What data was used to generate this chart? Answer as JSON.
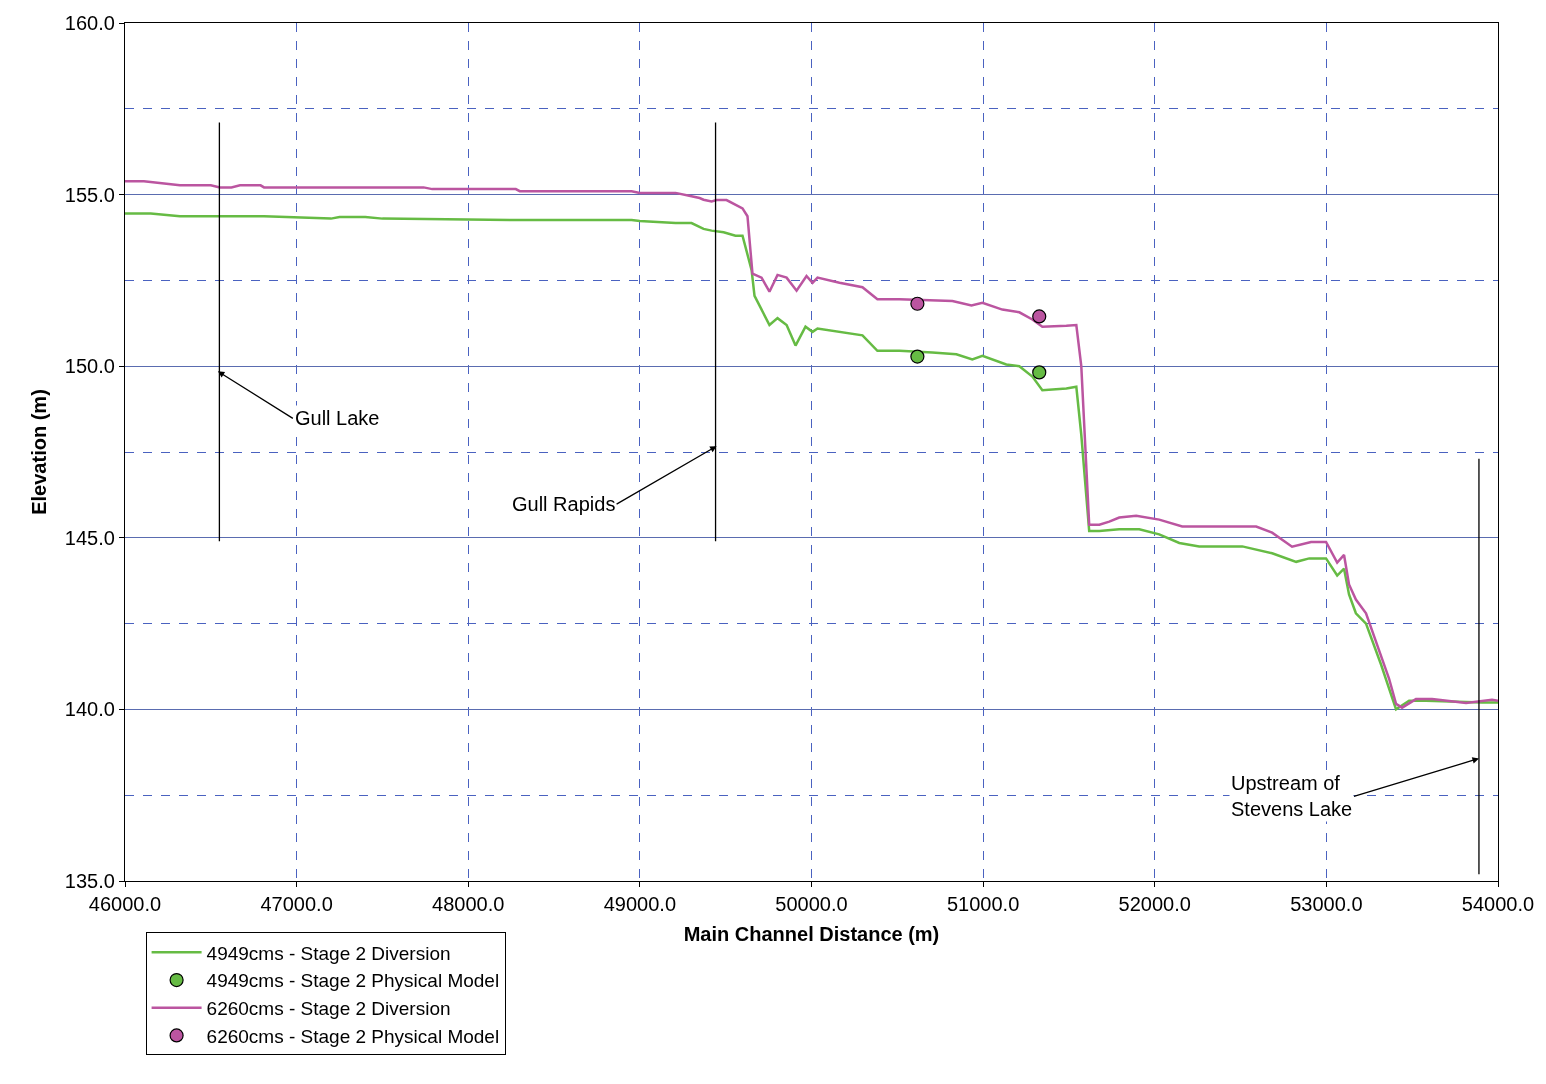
{
  "chart_data": {
    "type": "line",
    "xlabel": "Main Channel Distance (m)",
    "ylabel": "Elevation (m)",
    "xlim": [
      46000,
      54000
    ],
    "ylim": [
      135,
      160
    ],
    "xticks": [
      {
        "value": 46000,
        "label": "46000.0"
      },
      {
        "value": 47000,
        "label": "47000.0"
      },
      {
        "value": 48000,
        "label": "48000.0"
      },
      {
        "value": 49000,
        "label": "49000.0"
      },
      {
        "value": 50000,
        "label": "50000.0"
      },
      {
        "value": 51000,
        "label": "51000.0"
      },
      {
        "value": 52000,
        "label": "52000.0"
      },
      {
        "value": 53000,
        "label": "53000.0"
      },
      {
        "value": 54000,
        "label": "54000.0"
      }
    ],
    "yticks": [
      {
        "value": 135,
        "label": "135.0"
      },
      {
        "value": 140,
        "label": "140.0"
      },
      {
        "value": 145,
        "label": "145.0"
      },
      {
        "value": 150,
        "label": "150.0"
      },
      {
        "value": 155,
        "label": "155.0"
      },
      {
        "value": 160,
        "label": "160.0"
      }
    ],
    "grid": true,
    "legend": "bottom left",
    "line_style": "solid",
    "series": [
      {
        "name": "4949cms - Stage 2 Diversion",
        "marker": "none",
        "color": "#66bb44",
        "x": [
          46000,
          46150,
          46320,
          46550,
          46790,
          46810,
          47200,
          47250,
          47400,
          47500,
          48277,
          48300,
          48952,
          48999,
          49208,
          49301,
          49371,
          49418,
          49488,
          49557,
          49598,
          49651,
          49668,
          49755,
          49802,
          49855,
          49907,
          49965,
          50006,
          50035,
          50297,
          50384,
          50512,
          50704,
          50844,
          50937,
          50996,
          51135,
          51211,
          51287,
          51345,
          51485,
          51543,
          51572,
          51618,
          51677,
          51793,
          51910,
          52026,
          52143,
          52259,
          52510,
          52684,
          52824,
          52900,
          52998,
          53063,
          53103,
          53132,
          53172,
          53231,
          53319,
          53406,
          53482,
          53581,
          53907,
          54000
        ],
        "values": [
          154.45,
          154.45,
          154.37,
          154.37,
          154.37,
          154.37,
          154.3,
          154.35,
          154.35,
          154.3,
          154.26,
          154.26,
          154.26,
          154.23,
          154.17,
          154.17,
          154.0,
          153.95,
          153.9,
          153.8,
          153.8,
          152.8,
          152.05,
          151.2,
          151.4,
          151.2,
          150.6,
          151.15,
          151.0,
          151.1,
          150.9,
          150.45,
          150.45,
          150.4,
          150.35,
          150.2,
          150.3,
          150.05,
          150.0,
          149.7,
          149.3,
          149.35,
          149.4,
          148.0,
          145.2,
          145.2,
          145.25,
          145.25,
          145.1,
          144.85,
          144.75,
          144.75,
          144.55,
          144.3,
          144.4,
          144.4,
          143.9,
          144.1,
          143.35,
          142.8,
          142.5,
          141.3,
          140.0,
          140.25,
          140.25,
          140.2,
          140.2
        ]
      },
      {
        "name": "4949cms - Stage 2 Physical Model",
        "type": "scatter",
        "marker": "circle",
        "color": "#66bb44",
        "x": [
          50617,
          51327
        ],
        "values": [
          150.28,
          149.82
        ]
      },
      {
        "name": "6260cms - Stage 2 Diversion",
        "marker": "none",
        "color": "#bb55a0",
        "x": [
          46000,
          46110,
          46320,
          46500,
          46553,
          46620,
          46670,
          46790,
          46810,
          47740,
          47790,
          48277,
          48300,
          48952,
          48999,
          49208,
          49301,
          49348,
          49371,
          49418,
          49447,
          49505,
          49598,
          49627,
          49656,
          49709,
          49755,
          49802,
          49855,
          49913,
          49971,
          50006,
          50035,
          50163,
          50297,
          50384,
          50512,
          50821,
          50932,
          50996,
          51112,
          51211,
          51287,
          51345,
          51485,
          51543,
          51572,
          51618,
          51677,
          51735,
          51793,
          51892,
          52026,
          52160,
          52591,
          52684,
          52800,
          52911,
          52998,
          53063,
          53103,
          53132,
          53172,
          53231,
          53365,
          53406,
          53441,
          53522,
          53616,
          53814,
          53965,
          54000
        ],
        "values": [
          155.39,
          155.39,
          155.27,
          155.27,
          155.21,
          155.21,
          155.27,
          155.27,
          155.21,
          155.21,
          155.16,
          155.16,
          155.1,
          155.1,
          155.05,
          155.05,
          154.95,
          154.9,
          154.85,
          154.8,
          154.84,
          154.84,
          154.6,
          154.37,
          152.7,
          152.58,
          152.17,
          152.66,
          152.58,
          152.2,
          152.63,
          152.43,
          152.58,
          152.43,
          152.3,
          151.95,
          151.95,
          151.9,
          151.77,
          151.85,
          151.65,
          151.57,
          151.36,
          151.15,
          151.18,
          151.2,
          150.0,
          145.38,
          145.38,
          145.47,
          145.59,
          145.64,
          145.53,
          145.33,
          145.33,
          145.15,
          144.74,
          144.88,
          144.88,
          144.28,
          144.5,
          143.64,
          143.2,
          142.8,
          140.9,
          140.16,
          140.05,
          140.3,
          140.3,
          140.19,
          140.28,
          140.25
        ]
      },
      {
        "name": "6260cms - Stage 2 Physical Model",
        "type": "scatter",
        "marker": "circle",
        "color": "#bb55a0",
        "x": [
          50617,
          51327
        ],
        "values": [
          151.82,
          151.45
        ]
      },
      {
        "marker": "none",
        "color": "#000000",
        "x": [
          46550,
          46550
        ],
        "values": [
          144.9,
          157.1
        ]
      },
      {
        "marker": "none",
        "color": "#000000",
        "x": [
          49441,
          49441
        ],
        "values": [
          144.9,
          157.1
        ]
      },
      {
        "marker": "none",
        "color": "#000000",
        "x": [
          53889,
          53889
        ],
        "values": [
          135.2,
          147.3
        ]
      }
    ],
    "annotations": [
      {
        "text": "Gull Lake",
        "x": 46541,
        "y": 149.85
      },
      {
        "text": "Gull Rapids",
        "x": 49447,
        "y": 147.67
      },
      {
        "text": "Upstream of\nStevens Lake",
        "x": 53889,
        "y": 138.57
      }
    ]
  }
}
